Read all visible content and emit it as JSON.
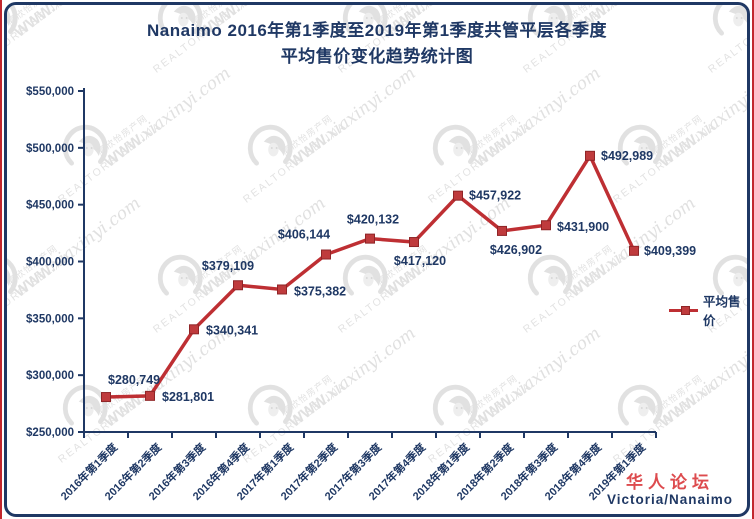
{
  "title": {
    "line1": "Nanaimo 2016年第1季度至2019年第1季度共管平层各季度",
    "line2": "平均售价变化趋势统计图"
  },
  "chart_data": {
    "type": "line",
    "title": "Nanaimo 2016年第1季度至2019年第1季度共管平层各季度平均售价变化趋势统计图",
    "categories": [
      "2016年第1季度",
      "2016年第2季度",
      "2016年第3季度",
      "2016年第4季度",
      "2017年第1季度",
      "2017年第2季度",
      "2017年第3季度",
      "2017年第4季度",
      "2018年第1季度",
      "2018年第2季度",
      "2018年第3季度",
      "2018年第4季度",
      "2019年第1季度"
    ],
    "series": [
      {
        "name": "平均售价",
        "values": [
          280749,
          281801,
          340341,
          379109,
          375382,
          406144,
          420132,
          417120,
          457922,
          426902,
          431900,
          492989,
          409399
        ]
      }
    ],
    "data_labels": [
      "$280,749",
      "$281,801",
      "$340,341",
      "$379,109",
      "$375,382",
      "$406,144",
      "$420,132",
      "$417,120",
      "$457,922",
      "$426,902",
      "$431,900",
      "$492,989",
      "$409,399"
    ],
    "label_offsets": [
      [
        2,
        -13,
        "start"
      ],
      [
        12,
        5,
        "start"
      ],
      [
        12,
        5,
        "start"
      ],
      [
        -10,
        -15,
        "middle"
      ],
      [
        12,
        6,
        "start"
      ],
      [
        -22,
        -16,
        "middle"
      ],
      [
        3,
        -15,
        "middle"
      ],
      [
        6,
        23,
        "middle"
      ],
      [
        11,
        4,
        "start"
      ],
      [
        14,
        23,
        "middle"
      ],
      [
        11,
        6,
        "start"
      ],
      [
        11,
        4,
        "start"
      ],
      [
        10,
        4,
        "start"
      ]
    ],
    "ylim": [
      250000,
      550000
    ],
    "ytick_step": 50000,
    "ytick_labels": [
      "$250,000",
      "$300,000",
      "$350,000",
      "$400,000",
      "$450,000",
      "$500,000",
      "$550,000"
    ],
    "grid": false,
    "legend_position": "right",
    "colors": {
      "line": "#be2f33",
      "marker_fill": "#bf3b3d",
      "marker_edge": "#8f2527",
      "axis": "#1f3864",
      "text": "#1f3864"
    }
  },
  "legend": {
    "label": "平均售价"
  },
  "watermark": {
    "site_name": "夏欣怡房产网",
    "url_caps": "WWW.",
    "url_script": "xiaxinyi.com",
    "realtor_line": "REALTOR® SELINA"
  },
  "footer": {
    "forum": "华人论坛",
    "location": "Victoria/Nanaimo"
  },
  "frame": {
    "outer_border_color": "#c2272d",
    "inner_border_color": "#1f3864"
  }
}
